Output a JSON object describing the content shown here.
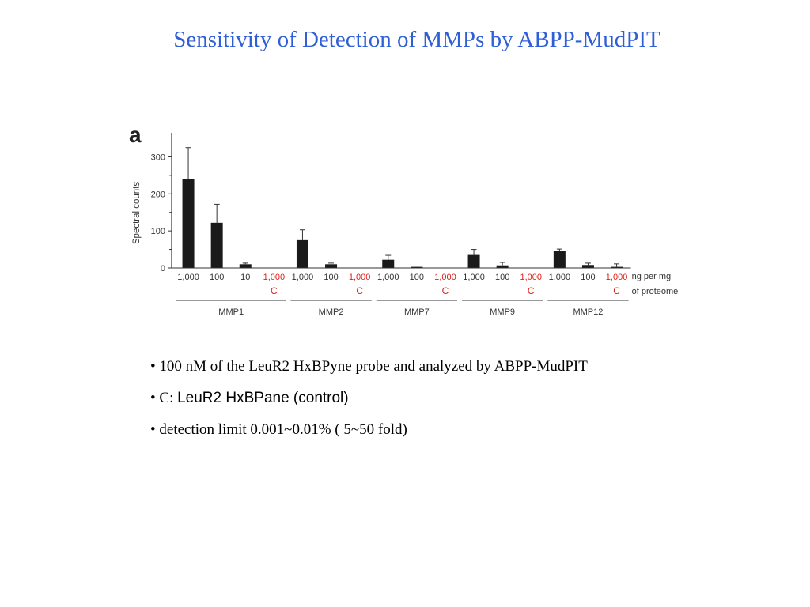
{
  "slide": {
    "title": "Sensitivity of Detection of MMPs by ABPP-MudPIT",
    "panel_letter": "a",
    "bullets": [
      {
        "prefix": "• ",
        "text": "100 nM of the LeuR2 HxBPyne probe and analyzed by ABPP-MudPIT"
      },
      {
        "prefix": "• C: ",
        "text": "LeuR2 HxBPane (control)"
      },
      {
        "prefix": "• ",
        "text": "detection limit 0.001~0.01% ( 5~50 fold)"
      }
    ]
  },
  "chart_data": {
    "type": "bar",
    "ylabel": "Spectral counts",
    "ylim": [
      0,
      350
    ],
    "yticks": [
      0,
      100,
      200,
      300
    ],
    "x_unit_label_line1": "ng per mg",
    "x_unit_label_line2": "of proteome",
    "control_color": "#e0201a",
    "bar_color": "#1a1a1a",
    "groups": [
      {
        "name": "MMP1",
        "bars": [
          {
            "label": "1,000",
            "value": 240,
            "error": 85,
            "control": false
          },
          {
            "label": "100",
            "value": 122,
            "error": 50,
            "control": false
          },
          {
            "label": "10",
            "value": 10,
            "error": 3,
            "control": false
          },
          {
            "label": "1,000",
            "sublabel": "C",
            "value": 0,
            "error": 0,
            "control": true
          }
        ]
      },
      {
        "name": "MMP2",
        "bars": [
          {
            "label": "1,000",
            "value": 75,
            "error": 28,
            "control": false
          },
          {
            "label": "100",
            "value": 10,
            "error": 3,
            "control": false
          },
          {
            "label": "1,000",
            "sublabel": "C",
            "value": 0,
            "error": 0,
            "control": true
          }
        ]
      },
      {
        "name": "MMP7",
        "bars": [
          {
            "label": "1,000",
            "value": 22,
            "error": 12,
            "control": false
          },
          {
            "label": "100",
            "value": 3,
            "error": 0,
            "control": false
          },
          {
            "label": "1,000",
            "sublabel": "C",
            "value": 0,
            "error": 0,
            "control": true
          }
        ]
      },
      {
        "name": "MMP9",
        "bars": [
          {
            "label": "1,000",
            "value": 35,
            "error": 15,
            "control": false
          },
          {
            "label": "100",
            "value": 7,
            "error": 8,
            "control": false
          },
          {
            "label": "1,000",
            "sublabel": "C",
            "value": 0,
            "error": 0,
            "control": true
          }
        ]
      },
      {
        "name": "MMP12",
        "bars": [
          {
            "label": "1,000",
            "value": 45,
            "error": 6,
            "control": false
          },
          {
            "label": "100",
            "value": 8,
            "error": 5,
            "control": false
          },
          {
            "label": "1,000",
            "sublabel": "C",
            "value": 3,
            "error": 8,
            "control": true
          }
        ]
      }
    ]
  }
}
